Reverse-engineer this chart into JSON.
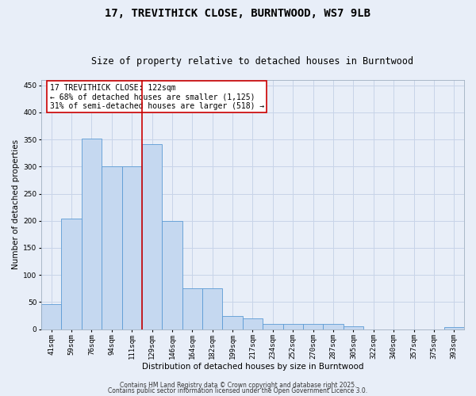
{
  "title": "17, TREVITHICK CLOSE, BURNTWOOD, WS7 9LB",
  "subtitle": "Size of property relative to detached houses in Burntwood",
  "xlabel": "Distribution of detached houses by size in Burntwood",
  "ylabel": "Number of detached properties",
  "categories": [
    "41sqm",
    "59sqm",
    "76sqm",
    "94sqm",
    "111sqm",
    "129sqm",
    "146sqm",
    "164sqm",
    "182sqm",
    "199sqm",
    "217sqm",
    "234sqm",
    "252sqm",
    "270sqm",
    "287sqm",
    "305sqm",
    "322sqm",
    "340sqm",
    "357sqm",
    "375sqm",
    "393sqm"
  ],
  "values": [
    46,
    204,
    351,
    300,
    300,
    341,
    200,
    75,
    75,
    24,
    20,
    9,
    9,
    10,
    10,
    5,
    0,
    0,
    0,
    0,
    4
  ],
  "bar_color": "#c5d8f0",
  "bar_edge_color": "#5b9bd5",
  "grid_color": "#c8d4e8",
  "background_color": "#e8eef8",
  "vline_x": 4.5,
  "vline_color": "#cc0000",
  "annotation_text": "17 TREVITHICK CLOSE: 122sqm\n← 68% of detached houses are smaller (1,125)\n31% of semi-detached houses are larger (518) →",
  "annotation_box_color": "#ffffff",
  "annotation_box_edge": "#cc0000",
  "ylim": [
    0,
    460
  ],
  "yticks": [
    0,
    50,
    100,
    150,
    200,
    250,
    300,
    350,
    400,
    450
  ],
  "footer1": "Contains HM Land Registry data © Crown copyright and database right 2025.",
  "footer2": "Contains public sector information licensed under the Open Government Licence 3.0.",
  "title_fontsize": 10,
  "subtitle_fontsize": 8.5,
  "axis_label_fontsize": 7.5,
  "tick_fontsize": 6.5,
  "annotation_fontsize": 7,
  "footer_fontsize": 5.5
}
